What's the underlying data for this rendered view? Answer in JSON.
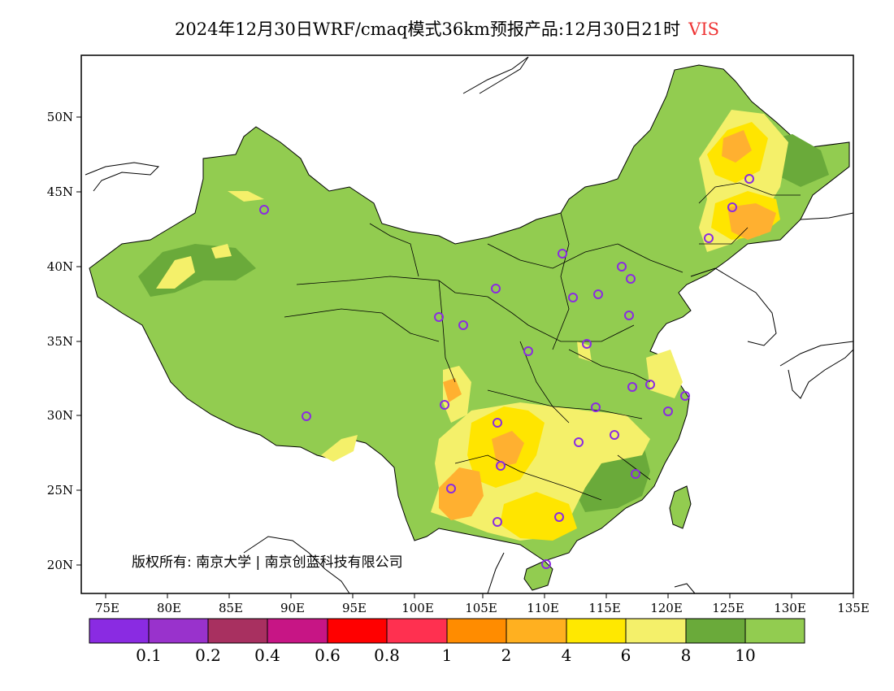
{
  "title": {
    "main": "2024年12月30日WRF/cmaq模式36km预报产品:12月30日21时",
    "variable": "VIS"
  },
  "map": {
    "lat_labels": [
      "50N",
      "45N",
      "40N",
      "35N",
      "30N",
      "25N",
      "20N"
    ],
    "lon_labels": [
      "75E",
      "80E",
      "85E",
      "90E",
      "95E",
      "100E",
      "105E",
      "110E",
      "115E",
      "120E",
      "125E",
      "130E",
      "135E"
    ],
    "copyright": "版权所有: 南京大学 | 南京创蓝科技有限公司",
    "colors": {
      "land_default": "#92cc50",
      "land_dark": "#6aaa3a",
      "light_yellow": "#f4f06a",
      "yellow": "#ffe500",
      "orange": "#ffb030",
      "deep_orange": "#ff9000",
      "marker": "#8a2be2"
    },
    "site_count": 31
  },
  "colorbar": {
    "colors": [
      "#8a2be2",
      "#9932cc",
      "#a83060",
      "#c71585",
      "#ff0000",
      "#ff3050",
      "#ff8c00",
      "#ffb020",
      "#ffe800",
      "#f4f06a",
      "#6aaa3a",
      "#92cc50"
    ],
    "labels": [
      "0.1",
      "0.2",
      "0.4",
      "0.6",
      "0.8",
      "1",
      "2",
      "4",
      "6",
      "8",
      "10"
    ]
  }
}
